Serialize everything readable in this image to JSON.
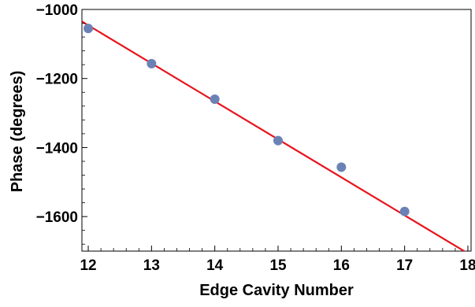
{
  "chart_data": {
    "type": "scatter",
    "title": "",
    "xlabel": "Edge Cavity Number",
    "ylabel": "Phase (degrees)",
    "xlim": [
      11.9,
      18.05
    ],
    "ylim": [
      -1700,
      -1000
    ],
    "xticks": [
      12,
      13,
      14,
      15,
      16,
      17,
      18
    ],
    "yticks": [
      -1000,
      -1200,
      -1400,
      -1600
    ],
    "xtick_labels": [
      "12",
      "13",
      "14",
      "15",
      "16",
      "17",
      "18"
    ],
    "ytick_labels": [
      "−1000",
      "−1200",
      "−1400",
      "−1600"
    ],
    "grid": false,
    "series": [
      {
        "type": "scatter",
        "color": "#6a82b6",
        "x": [
          12,
          13,
          14,
          15,
          16,
          17
        ],
        "y": [
          -1055,
          -1157,
          -1260,
          -1380,
          -1457,
          -1585
        ]
      },
      {
        "type": "line",
        "color": "#e8141c",
        "x": [
          11.9,
          18.05
        ],
        "y": [
          -1035,
          -1712
        ]
      }
    ]
  }
}
